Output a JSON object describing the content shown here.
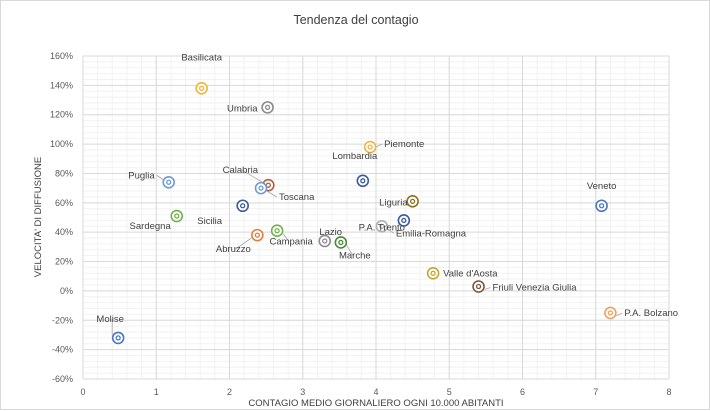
{
  "chart_data": {
    "type": "scatter",
    "title": "Tendenza del contagio",
    "xlabel": "CONTAGIO MEDIO GIORNALIERO OGNI 10.000 ABITANTI",
    "ylabel": "VELOCITA' DI DIFFUSIONE",
    "xlim": [
      0,
      8
    ],
    "ylim": [
      -60,
      160
    ],
    "x_ticks": [
      "0",
      "1",
      "2",
      "3",
      "4",
      "5",
      "6",
      "7",
      "8"
    ],
    "y_ticks": [
      "-60%",
      "-40%",
      "-20%",
      "0%",
      "20%",
      "40%",
      "60%",
      "80%",
      "100%",
      "120%",
      "140%",
      "160%"
    ],
    "grid": true,
    "y_unit": "percent",
    "points": [
      {
        "label": "Basilicata",
        "x": 1.62,
        "y": 138,
        "color": "#f0b53c"
      },
      {
        "label": "Umbria",
        "x": 2.52,
        "y": 125,
        "color": "#8c8c8c"
      },
      {
        "label": "Piemonte",
        "x": 3.92,
        "y": 98,
        "color": "#f0b53c"
      },
      {
        "label": "Lombardia",
        "x": 3.82,
        "y": 75,
        "color": "#3d5a9e"
      },
      {
        "label": "Puglia",
        "x": 1.17,
        "y": 74,
        "color": "#6e9ad6"
      },
      {
        "label": "Calabria",
        "x": 2.53,
        "y": 72,
        "color": "#b0603a"
      },
      {
        "label": "Toscana",
        "x": 2.43,
        "y": 70,
        "color": "#6e9ad6"
      },
      {
        "label": "Liguria",
        "x": 4.5,
        "y": 61,
        "color": "#8a7220"
      },
      {
        "label": "Veneto",
        "x": 7.08,
        "y": 58,
        "color": "#4a78c2"
      },
      {
        "label": "Sicilia",
        "x": 2.18,
        "y": 58,
        "color": "#3d5a9e"
      },
      {
        "label": "Sardegna",
        "x": 1.28,
        "y": 51,
        "color": "#6fb34a"
      },
      {
        "label": "P.A. Trento",
        "x": 4.38,
        "y": 48,
        "color": "#3d5a9e"
      },
      {
        "label": "Emilia-Romagna",
        "x": 4.08,
        "y": 44,
        "color": "#b0b0b0"
      },
      {
        "label": "Campania",
        "x": 2.65,
        "y": 41,
        "color": "#6fb34a"
      },
      {
        "label": "Abruzzo",
        "x": 2.38,
        "y": 38,
        "color": "#e37e3e"
      },
      {
        "label": "Lazio",
        "x": 3.3,
        "y": 34,
        "color": "#8c8c8c"
      },
      {
        "label": "Marche",
        "x": 3.52,
        "y": 33,
        "color": "#4a8a38"
      },
      {
        "label": "Valle d'Aosta",
        "x": 4.78,
        "y": 12,
        "color": "#c9a62a"
      },
      {
        "label": "Friuli Venezia Giulia",
        "x": 5.4,
        "y": 3,
        "color": "#7a5a3a"
      },
      {
        "label": "P.A. Bolzano",
        "x": 7.2,
        "y": -15,
        "color": "#f0a060"
      },
      {
        "label": "Molise",
        "x": 0.48,
        "y": -32,
        "color": "#4a78c2"
      }
    ]
  }
}
